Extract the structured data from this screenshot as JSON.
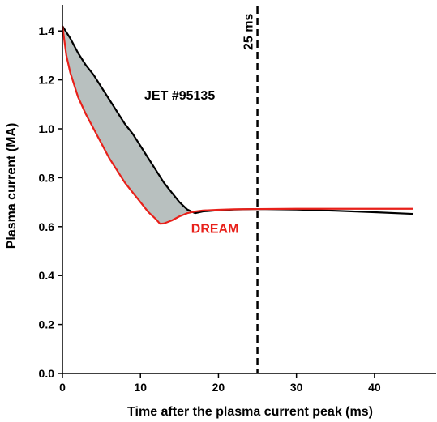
{
  "chart_data": {
    "type": "line",
    "xlabel": "Time after the plasma current peak (ms)",
    "ylabel": "Plasma current (MA)",
    "xlim": [
      0,
      45
    ],
    "ylim": [
      0,
      1.5
    ],
    "xticks": [
      0,
      10,
      20,
      30,
      40
    ],
    "yticks": [
      0.0,
      0.2,
      0.4,
      0.6,
      0.8,
      1.0,
      1.2,
      1.4
    ],
    "xtick_labels": [
      "0",
      "10",
      "20",
      "30",
      "40"
    ],
    "ytick_labels": [
      "0.0",
      "0.2",
      "0.4",
      "0.6",
      "0.8",
      "1.0",
      "1.2",
      "1.4"
    ],
    "grid": false,
    "series": [
      {
        "name": "JET #95135",
        "color": "#000000",
        "x": [
          0,
          1,
          2,
          3,
          4,
          5,
          6,
          7,
          8,
          9,
          10,
          11,
          12,
          13,
          14,
          15,
          16,
          17,
          18,
          20,
          22,
          25,
          30,
          35,
          40,
          45
        ],
        "y": [
          1.42,
          1.37,
          1.31,
          1.26,
          1.22,
          1.17,
          1.12,
          1.07,
          1.02,
          0.98,
          0.93,
          0.88,
          0.83,
          0.78,
          0.74,
          0.7,
          0.67,
          0.655,
          0.662,
          0.667,
          0.67,
          0.672,
          0.67,
          0.665,
          0.659,
          0.652
        ]
      },
      {
        "name": "DREAM",
        "color": "#e8201a",
        "x": [
          0,
          0.5,
          1,
          2,
          3,
          4,
          5,
          6,
          7,
          8,
          9,
          10,
          11,
          12,
          12.5,
          13,
          14,
          15,
          16,
          17,
          18,
          20,
          22,
          25,
          30,
          35,
          40,
          45
        ],
        "y": [
          1.42,
          1.3,
          1.23,
          1.13,
          1.06,
          1.0,
          0.94,
          0.88,
          0.83,
          0.78,
          0.74,
          0.7,
          0.66,
          0.63,
          0.612,
          0.613,
          0.625,
          0.642,
          0.655,
          0.662,
          0.666,
          0.669,
          0.671,
          0.672,
          0.673,
          0.673,
          0.673,
          0.673
        ]
      }
    ],
    "fill_between": {
      "series": [
        "JET #95135",
        "DREAM"
      ],
      "x_range": [
        0,
        18
      ],
      "color": "#b8c0bf"
    },
    "vline": {
      "x": 25,
      "label": "25 ms",
      "style": "dashed",
      "color": "#000000"
    },
    "annotations": [
      {
        "text": "JET #95135",
        "x": 10.5,
        "y": 1.12,
        "color": "#000000"
      },
      {
        "text": "DREAM",
        "x": 16.5,
        "y": 0.575,
        "color": "#e8201a"
      }
    ]
  }
}
